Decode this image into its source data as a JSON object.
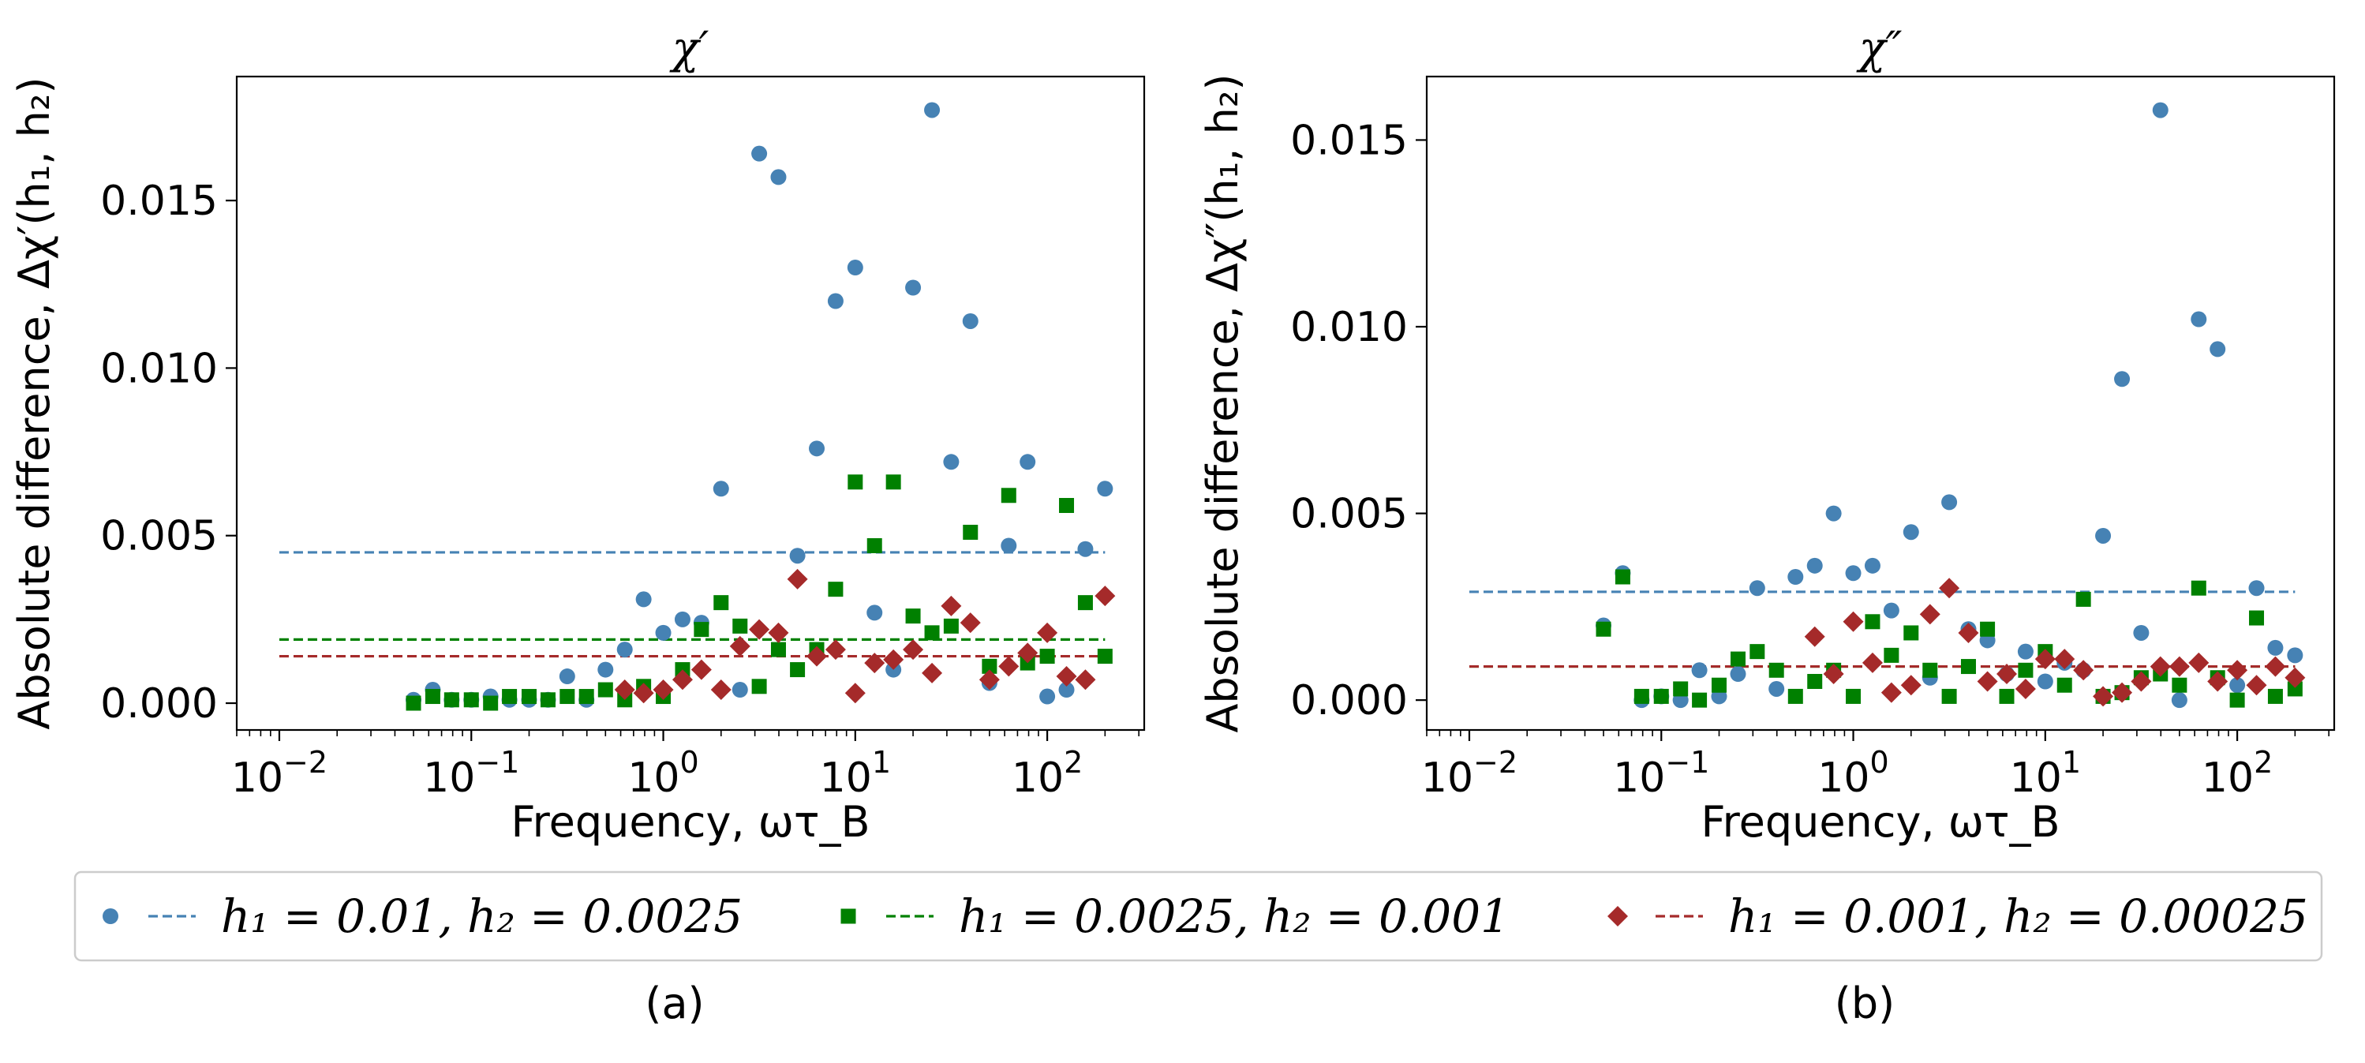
{
  "colors": {
    "blue": "#4682b4",
    "green": "#008000",
    "red": "#a52a2a"
  },
  "legend": [
    {
      "label": "h₁ = 0.01, h₂ = 0.0025",
      "marker": "circle",
      "color": "#4682b4"
    },
    {
      "label": "h₁ = 0.0025, h₂ = 0.001",
      "marker": "square",
      "color": "#008000"
    },
    {
      "label": "h₁ = 0.001, h₂ = 0.00025",
      "marker": "diamond",
      "color": "#a52a2a"
    }
  ],
  "chart_data": [
    {
      "type": "scatter",
      "title": "χ′",
      "caption": "(a)",
      "xlabel": "Frequency, ωτ_B",
      "ylabel": "Absolute difference, Δχ′(h₁, h₂)",
      "xscale": "log",
      "xlim": [
        0.006,
        320
      ],
      "ylim": [
        -0.0008,
        0.0187
      ],
      "xticks": [
        0.01,
        0.1,
        1,
        10,
        100
      ],
      "xtick_labels": [
        {
          "base": "10",
          "exp": "−2"
        },
        {
          "base": "10",
          "exp": "−1"
        },
        {
          "base": "10",
          "exp": "0"
        },
        {
          "base": "10",
          "exp": "1"
        },
        {
          "base": "10",
          "exp": "2"
        }
      ],
      "yticks": [
        0.0,
        0.005,
        0.01,
        0.015
      ],
      "ytick_labels": [
        "0.000",
        "0.005",
        "0.010",
        "0.015"
      ],
      "series": [
        {
          "name": "h1 = 0.01, h2 = 0.0025",
          "marker": "circle",
          "color": "#4682b4",
          "mean": 0.0045,
          "points": [
            [
              0.05,
              0.0001
            ],
            [
              0.063,
              0.0004
            ],
            [
              0.079,
              0.0001
            ],
            [
              0.1,
              0.0001
            ],
            [
              0.126,
              0.0002
            ],
            [
              0.158,
              0.0001
            ],
            [
              0.2,
              0.0001
            ],
            [
              0.251,
              0.0001
            ],
            [
              0.316,
              0.0008
            ],
            [
              0.398,
              0.0001
            ],
            [
              0.5,
              0.001
            ],
            [
              0.63,
              0.0016
            ],
            [
              0.79,
              0.0031
            ],
            [
              1.0,
              0.0021
            ],
            [
              1.26,
              0.0025
            ],
            [
              1.58,
              0.0024
            ],
            [
              2.0,
              0.0064
            ],
            [
              2.51,
              0.0004
            ],
            [
              3.16,
              0.0164
            ],
            [
              3.98,
              0.0157
            ],
            [
              5.0,
              0.0044
            ],
            [
              6.3,
              0.0076
            ],
            [
              7.9,
              0.012
            ],
            [
              10.0,
              0.013
            ],
            [
              12.6,
              0.0027
            ],
            [
              15.8,
              0.001
            ],
            [
              20.0,
              0.0124
            ],
            [
              25.1,
              0.0177
            ],
            [
              31.6,
              0.0072
            ],
            [
              39.8,
              0.0114
            ],
            [
              50.0,
              0.0006
            ],
            [
              63.0,
              0.0047
            ],
            [
              79.0,
              0.0072
            ],
            [
              100.0,
              0.0002
            ],
            [
              126.0,
              0.0004
            ],
            [
              158.0,
              0.0046
            ],
            [
              200.0,
              0.0064
            ]
          ]
        },
        {
          "name": "h1 = 0.0025, h2 = 0.001",
          "marker": "square",
          "color": "#008000",
          "mean": 0.0019,
          "points": [
            [
              0.05,
              0.0
            ],
            [
              0.063,
              0.0002
            ],
            [
              0.079,
              0.0001
            ],
            [
              0.1,
              0.0001
            ],
            [
              0.126,
              0.0
            ],
            [
              0.158,
              0.0002
            ],
            [
              0.2,
              0.0002
            ],
            [
              0.251,
              0.0001
            ],
            [
              0.316,
              0.0002
            ],
            [
              0.398,
              0.0002
            ],
            [
              0.5,
              0.0004
            ],
            [
              0.63,
              0.0001
            ],
            [
              0.79,
              0.0005
            ],
            [
              1.0,
              0.0002
            ],
            [
              1.26,
              0.001
            ],
            [
              1.58,
              0.0022
            ],
            [
              2.0,
              0.003
            ],
            [
              2.51,
              0.0023
            ],
            [
              3.16,
              0.0005
            ],
            [
              3.98,
              0.0016
            ],
            [
              5.0,
              0.001
            ],
            [
              6.3,
              0.0016
            ],
            [
              7.9,
              0.0034
            ],
            [
              10.0,
              0.0066
            ],
            [
              12.6,
              0.0047
            ],
            [
              15.8,
              0.0066
            ],
            [
              20.0,
              0.0026
            ],
            [
              25.1,
              0.0021
            ],
            [
              31.6,
              0.0023
            ],
            [
              39.8,
              0.0051
            ],
            [
              50.0,
              0.0011
            ],
            [
              63.0,
              0.0062
            ],
            [
              79.0,
              0.0012
            ],
            [
              100.0,
              0.0014
            ],
            [
              126.0,
              0.0059
            ],
            [
              158.0,
              0.003
            ],
            [
              200.0,
              0.0014
            ]
          ]
        },
        {
          "name": "h1 = 0.001, h2 = 0.00025",
          "marker": "diamond",
          "color": "#a52a2a",
          "mean": 0.0014,
          "points": [
            [
              0.63,
              0.0004
            ],
            [
              0.79,
              0.0003
            ],
            [
              1.0,
              0.0004
            ],
            [
              1.26,
              0.0007
            ],
            [
              1.58,
              0.001
            ],
            [
              2.0,
              0.0004
            ],
            [
              2.51,
              0.0017
            ],
            [
              3.16,
              0.0022
            ],
            [
              3.98,
              0.0021
            ],
            [
              5.0,
              0.0037
            ],
            [
              6.3,
              0.0014
            ],
            [
              7.9,
              0.0016
            ],
            [
              10.0,
              0.0003
            ],
            [
              12.6,
              0.0012
            ],
            [
              15.8,
              0.0013
            ],
            [
              20.0,
              0.0016
            ],
            [
              25.1,
              0.0009
            ],
            [
              31.6,
              0.0029
            ],
            [
              39.8,
              0.0024
            ],
            [
              50.0,
              0.0007
            ],
            [
              63.0,
              0.0011
            ],
            [
              79.0,
              0.0015
            ],
            [
              100.0,
              0.0021
            ],
            [
              126.0,
              0.0008
            ],
            [
              158.0,
              0.0007
            ],
            [
              200.0,
              0.0032
            ]
          ]
        }
      ]
    },
    {
      "type": "scatter",
      "title": "χ″",
      "caption": "(b)",
      "xlabel": "Frequency, ωτ_B",
      "ylabel": "Absolute difference, Δχ″(h₁, h₂)",
      "xscale": "log",
      "xlim": [
        0.006,
        320
      ],
      "ylim": [
        -0.0008,
        0.0167
      ],
      "xticks": [
        0.01,
        0.1,
        1,
        10,
        100
      ],
      "xtick_labels": [
        {
          "base": "10",
          "exp": "−2"
        },
        {
          "base": "10",
          "exp": "−1"
        },
        {
          "base": "10",
          "exp": "0"
        },
        {
          "base": "10",
          "exp": "1"
        },
        {
          "base": "10",
          "exp": "2"
        }
      ],
      "yticks": [
        0.0,
        0.005,
        0.01,
        0.015
      ],
      "ytick_labels": [
        "0.000",
        "0.005",
        "0.010",
        "0.015"
      ],
      "series": [
        {
          "name": "h1 = 0.01, h2 = 0.0025",
          "marker": "circle",
          "color": "#4682b4",
          "mean": 0.0029,
          "points": [
            [
              0.05,
              0.002
            ],
            [
              0.063,
              0.0034
            ],
            [
              0.079,
              0.0
            ],
            [
              0.1,
              0.0001
            ],
            [
              0.126,
              0.0
            ],
            [
              0.158,
              0.0008
            ],
            [
              0.2,
              0.0001
            ],
            [
              0.251,
              0.0007
            ],
            [
              0.316,
              0.003
            ],
            [
              0.398,
              0.0003
            ],
            [
              0.5,
              0.0033
            ],
            [
              0.63,
              0.0036
            ],
            [
              0.79,
              0.005
            ],
            [
              1.0,
              0.0034
            ],
            [
              1.26,
              0.0036
            ],
            [
              1.58,
              0.0024
            ],
            [
              2.0,
              0.0045
            ],
            [
              2.51,
              0.0006
            ],
            [
              3.16,
              0.0053
            ],
            [
              3.98,
              0.0019
            ],
            [
              5.0,
              0.0016
            ],
            [
              6.3,
              0.0007
            ],
            [
              7.9,
              0.0013
            ],
            [
              10.0,
              0.0005
            ],
            [
              12.6,
              0.001
            ],
            [
              15.8,
              0.0008
            ],
            [
              20.0,
              0.0044
            ],
            [
              25.1,
              0.0086
            ],
            [
              31.6,
              0.0018
            ],
            [
              39.8,
              0.0158
            ],
            [
              50.0,
              0.0
            ],
            [
              63.0,
              0.0102
            ],
            [
              79.0,
              0.0094
            ],
            [
              100.0,
              0.0004
            ],
            [
              126.0,
              0.003
            ],
            [
              158.0,
              0.0014
            ],
            [
              200.0,
              0.0012
            ]
          ]
        },
        {
          "name": "h1 = 0.0025, h2 = 0.001",
          "marker": "square",
          "color": "#008000",
          "mean": 0.0009,
          "points": [
            [
              0.05,
              0.0019
            ],
            [
              0.063,
              0.0033
            ],
            [
              0.079,
              0.0001
            ],
            [
              0.1,
              0.0001
            ],
            [
              0.126,
              0.0003
            ],
            [
              0.158,
              0.0
            ],
            [
              0.2,
              0.0004
            ],
            [
              0.251,
              0.0011
            ],
            [
              0.316,
              0.0013
            ],
            [
              0.398,
              0.0008
            ],
            [
              0.5,
              0.0001
            ],
            [
              0.63,
              0.0005
            ],
            [
              0.79,
              0.0008
            ],
            [
              1.0,
              0.0001
            ],
            [
              1.26,
              0.0021
            ],
            [
              1.58,
              0.0012
            ],
            [
              2.0,
              0.0018
            ],
            [
              2.51,
              0.0008
            ],
            [
              3.16,
              0.0001
            ],
            [
              3.98,
              0.0009
            ],
            [
              5.0,
              0.0019
            ],
            [
              6.3,
              0.0001
            ],
            [
              7.9,
              0.0008
            ],
            [
              10.0,
              0.0013
            ],
            [
              12.6,
              0.0004
            ],
            [
              15.8,
              0.0027
            ],
            [
              20.0,
              0.0001
            ],
            [
              25.1,
              0.0002
            ],
            [
              31.6,
              0.0006
            ],
            [
              39.8,
              0.0007
            ],
            [
              50.0,
              0.0004
            ],
            [
              63.0,
              0.003
            ],
            [
              79.0,
              0.0006
            ],
            [
              100.0,
              0.0
            ],
            [
              126.0,
              0.0022
            ],
            [
              158.0,
              0.0001
            ],
            [
              200.0,
              0.0003
            ]
          ]
        },
        {
          "name": "h1 = 0.001, h2 = 0.00025",
          "marker": "diamond",
          "color": "#a52a2a",
          "mean": 0.0009,
          "points": [
            [
              0.63,
              0.0017
            ],
            [
              0.79,
              0.0007
            ],
            [
              1.0,
              0.0021
            ],
            [
              1.26,
              0.001
            ],
            [
              1.58,
              0.0002
            ],
            [
              2.0,
              0.0004
            ],
            [
              2.51,
              0.0023
            ],
            [
              3.16,
              0.003
            ],
            [
              3.98,
              0.0018
            ],
            [
              5.0,
              0.0005
            ],
            [
              6.3,
              0.0007
            ],
            [
              7.9,
              0.0003
            ],
            [
              10.0,
              0.0011
            ],
            [
              12.6,
              0.0011
            ],
            [
              15.8,
              0.0008
            ],
            [
              20.0,
              0.0001
            ],
            [
              25.1,
              0.0002
            ],
            [
              31.6,
              0.0005
            ],
            [
              39.8,
              0.0009
            ],
            [
              50.0,
              0.0009
            ],
            [
              63.0,
              0.001
            ],
            [
              79.0,
              0.0005
            ],
            [
              100.0,
              0.0008
            ],
            [
              126.0,
              0.0004
            ],
            [
              158.0,
              0.0009
            ],
            [
              200.0,
              0.0006
            ]
          ]
        }
      ]
    }
  ]
}
